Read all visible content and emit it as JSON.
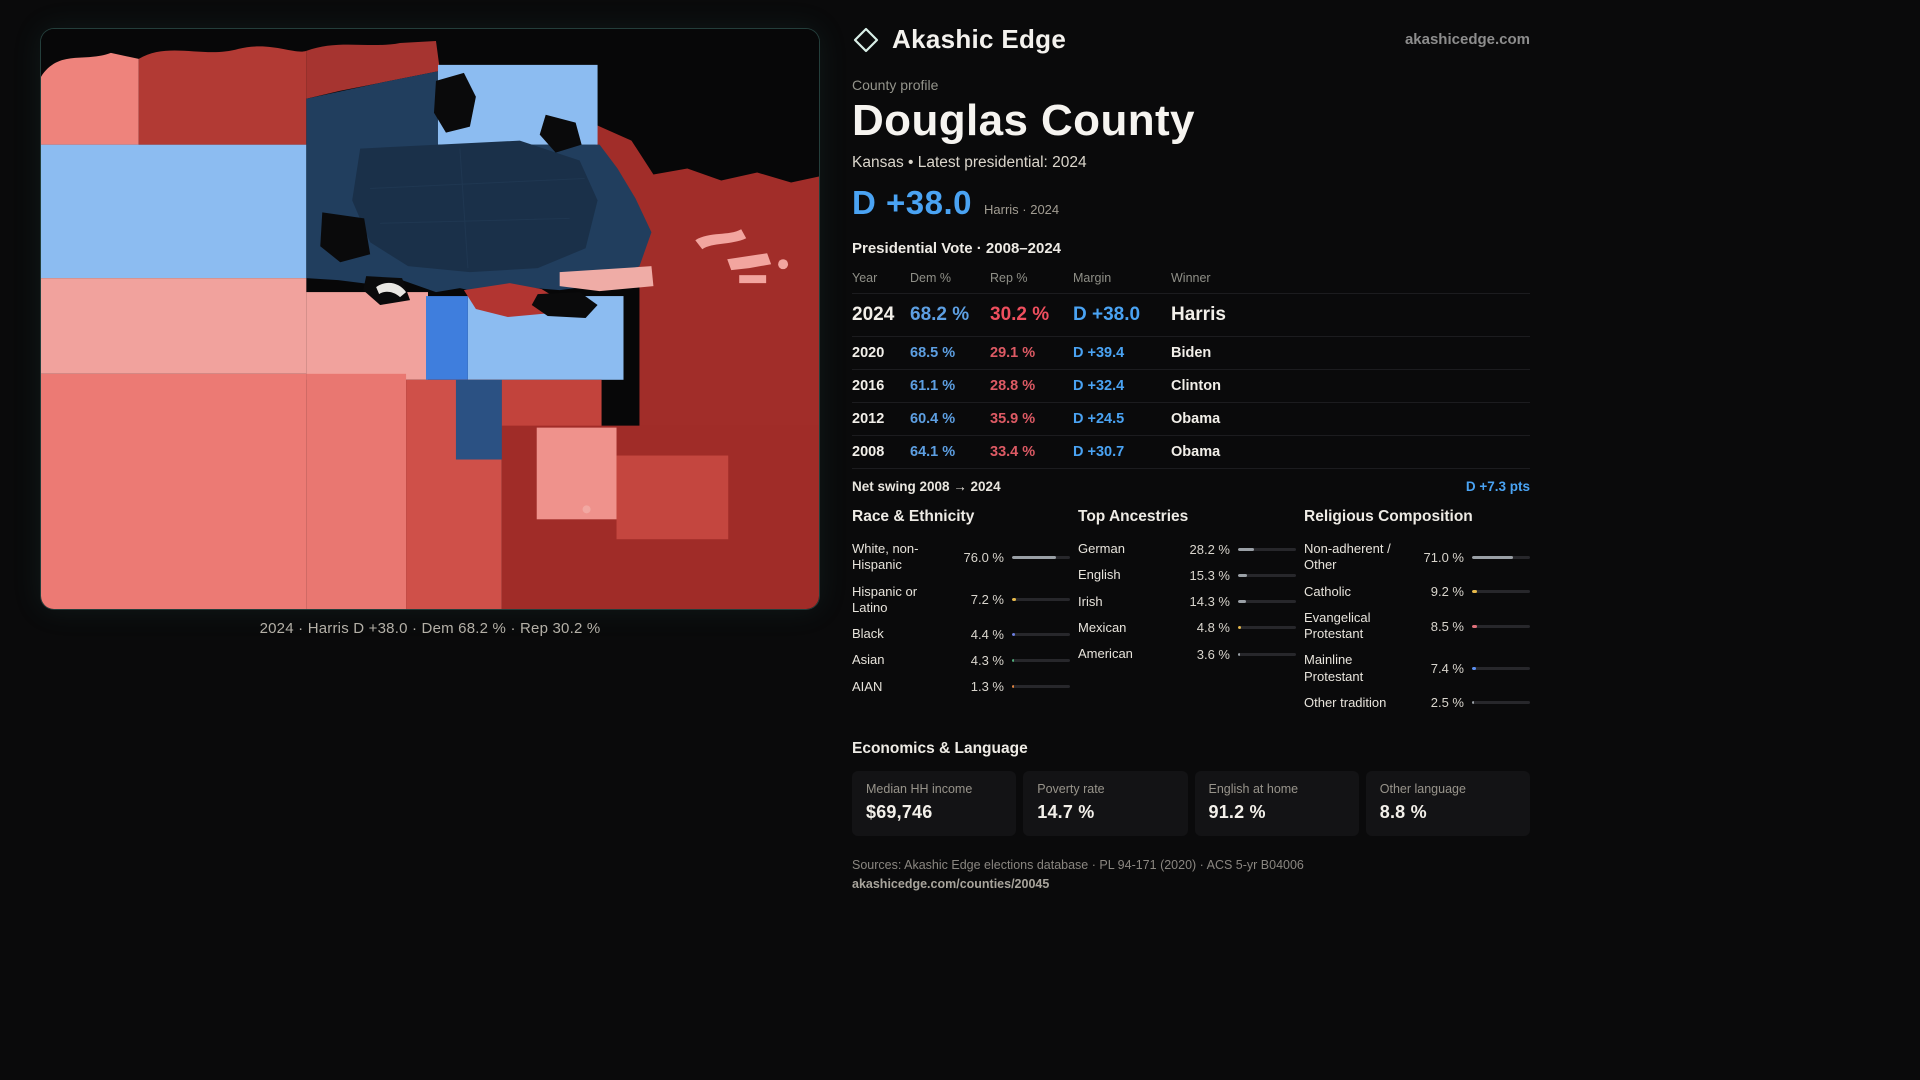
{
  "header": {
    "brand": "Akashic Edge",
    "domain": "akashicedge.com"
  },
  "profile": {
    "kicker": "County profile",
    "title": "Douglas County",
    "subtitle": "Kansas • Latest presidential: 2024",
    "headline_margin": "D +38.0",
    "headline_context": "Harris · 2024"
  },
  "map": {
    "caption": "2024 · Harris D +38.0 · Dem 68.2 % · Rep 30.2 %"
  },
  "vote_table": {
    "title": "Presidential Vote · 2008–2024",
    "columns": [
      "Year",
      "Dem %",
      "Rep %",
      "Margin",
      "Winner"
    ],
    "rows": [
      {
        "year": "2024",
        "dem": "68.2 %",
        "rep": "30.2 %",
        "margin": "D +38.0",
        "winner": "Harris"
      },
      {
        "year": "2020",
        "dem": "68.5 %",
        "rep": "29.1 %",
        "margin": "D +39.4",
        "winner": "Biden"
      },
      {
        "year": "2016",
        "dem": "61.1 %",
        "rep": "28.8 %",
        "margin": "D +32.4",
        "winner": "Clinton"
      },
      {
        "year": "2012",
        "dem": "60.4 %",
        "rep": "35.9 %",
        "margin": "D +24.5",
        "winner": "Obama"
      },
      {
        "year": "2008",
        "dem": "64.1 %",
        "rep": "33.4 %",
        "margin": "D +30.7",
        "winner": "Obama"
      }
    ],
    "net_swing_label": "Net swing 2008 → 2024",
    "net_swing_value": "D +7.3 pts"
  },
  "demographics": {
    "race": {
      "heading": "Race & Ethnicity",
      "items": [
        {
          "label": "White, non-Hispanic",
          "value": "76.0 %",
          "pct": 76.0,
          "color": "#9aa0a6"
        },
        {
          "label": "Hispanic or Latino",
          "value": "7.2 %",
          "pct": 7.2,
          "color": "#e6b84a"
        },
        {
          "label": "Black",
          "value": "4.4 %",
          "pct": 4.4,
          "color": "#6a7de0"
        },
        {
          "label": "Asian",
          "value": "4.3 %",
          "pct": 4.3,
          "color": "#4fae7a"
        },
        {
          "label": "AIAN",
          "value": "1.3 %",
          "pct": 1.3,
          "color": "#e0823f"
        }
      ]
    },
    "ancestries": {
      "heading": "Top Ancestries",
      "items": [
        {
          "label": "German",
          "value": "28.2 %",
          "pct": 28.2,
          "color": "#9aa0a6"
        },
        {
          "label": "English",
          "value": "15.3 %",
          "pct": 15.3,
          "color": "#9aa0a6"
        },
        {
          "label": "Irish",
          "value": "14.3 %",
          "pct": 14.3,
          "color": "#9aa0a6"
        },
        {
          "label": "Mexican",
          "value": "4.8 %",
          "pct": 4.8,
          "color": "#e6b84a"
        },
        {
          "label": "American",
          "value": "3.6 %",
          "pct": 3.6,
          "color": "#9aa0a6"
        }
      ]
    },
    "religion": {
      "heading": "Religious Composition",
      "items": [
        {
          "label": "Non-adherent / Other",
          "value": "71.0 %",
          "pct": 71.0,
          "color": "#9aa0a6"
        },
        {
          "label": "Catholic",
          "value": "9.2 %",
          "pct": 9.2,
          "color": "#e6b84a"
        },
        {
          "label": "Evangelical Protestant",
          "value": "8.5 %",
          "pct": 8.5,
          "color": "#e0707a"
        },
        {
          "label": "Mainline Protestant",
          "value": "7.4 %",
          "pct": 7.4,
          "color": "#5b8ff0"
        },
        {
          "label": "Other tradition",
          "value": "2.5 %",
          "pct": 2.5,
          "color": "#9aa0a6"
        }
      ]
    }
  },
  "economics": {
    "heading": "Economics & Language",
    "stats": [
      {
        "label": "Median HH income",
        "value": "$69,746"
      },
      {
        "label": "Poverty rate",
        "value": "14.7 %"
      },
      {
        "label": "English at home",
        "value": "91.2 %"
      },
      {
        "label": "Other language",
        "value": "8.8 %"
      }
    ]
  },
  "footer": {
    "sources": "Sources: Akashic Edge elections database · PL 94-171 (2020) · ACS 5-yr B04006",
    "permalink": "akashicedge.com/counties/20045"
  },
  "colors": {
    "accent_dem": "#4aa3f3",
    "accent_rep": "#ef4f5e",
    "map_dem_strong": "#213e5e",
    "map_dem_light": "#8cbcf1",
    "map_rep_strong": "#a12d29",
    "map_rep_light": "#ee837c"
  }
}
